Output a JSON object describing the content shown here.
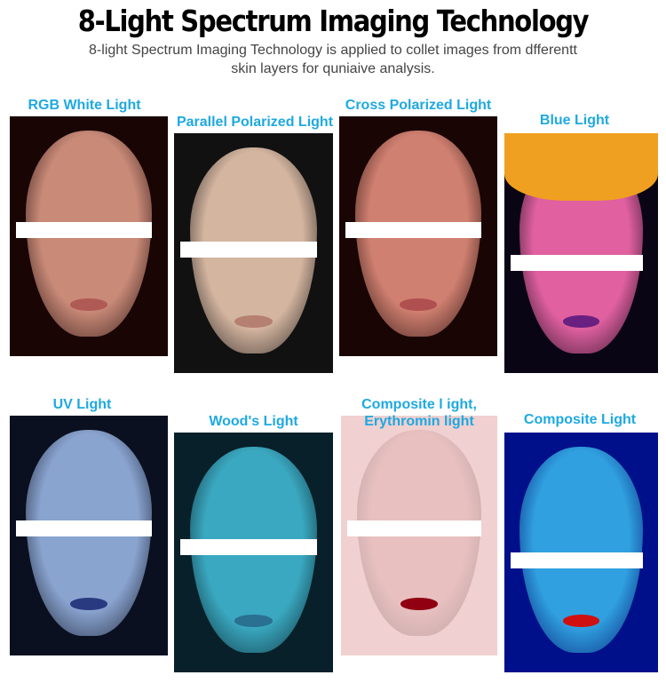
{
  "title": "8-Light Spectrum Imaging Technology",
  "subtitle_line1": "8-light Spectrum Imaging Technology is applied to collet images from dfferentt",
  "subtitle_line2": "skin layers for quniaive analysis.",
  "panels": [
    {
      "label": "RGB White Light",
      "bg": "#1a0505",
      "face": "#c98a78",
      "mouth": "#b05a55"
    },
    {
      "label": "Parallel Polarized Light",
      "bg": "#111",
      "face": "#d4b5a0",
      "mouth": "#b58070"
    },
    {
      "label": "Cross Polarized Light",
      "bg": "#1a0505",
      "face": "#d08070",
      "mouth": "#b04f50"
    },
    {
      "label": "Blue Light",
      "bg": "#0a0515",
      "face": "#e060a0",
      "mouth": "#6a2080"
    },
    {
      "label": "UV Light",
      "bg": "#0a1020",
      "face": "#8aa4d0",
      "mouth": "#2a3a80"
    },
    {
      "label": "Wood's Light",
      "bg": "#08202a",
      "face": "#3aa8c0",
      "mouth": "#2a7090"
    },
    {
      "label_line1": "Composite l ight,",
      "label_line2": "Erythromin light",
      "bg": "#f0d0d0",
      "face": "#e8c0c0",
      "mouth": "#900010"
    },
    {
      "label": "Composite Light",
      "bg": "#00108a",
      "face": "#30a0e0",
      "mouth": "#d01010"
    }
  ]
}
